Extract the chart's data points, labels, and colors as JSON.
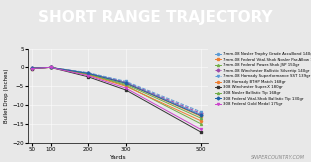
{
  "title": "SHORT RANGE TRAJECTORY",
  "xlabel": "Yards",
  "ylabel": "Bullet Drop (Inches)",
  "background_title": "#555555",
  "background_plot": "#e8e8e8",
  "title_color": "#ffffff",
  "accent_color": "#cc3333",
  "xlim": [
    40,
    520
  ],
  "ylim": [
    -20,
    5
  ],
  "xticks": [
    50,
    100,
    200,
    300,
    500
  ],
  "yticks": [
    5,
    0,
    -5,
    -10,
    -15,
    -20
  ],
  "yards": [
    50,
    100,
    200,
    300,
    500
  ],
  "series": [
    {
      "label": "7mm-08 Nosler Trophy Grade AccuBond 140gr",
      "color": "#5b9bd5",
      "style": "-",
      "marker": "o",
      "values": [
        -0.2,
        0.0,
        -1.5,
        -4.0,
        -12.5
      ]
    },
    {
      "label": "7mm-08 Federal Vital-Shok Nosler Par-Allow 140gr",
      "color": "#ed7d31",
      "style": "-",
      "marker": "s",
      "values": [
        -0.2,
        0.0,
        -1.6,
        -4.2,
        -13.0
      ]
    },
    {
      "label": "7mm-08 Federal Power-Shok JSP 150gr",
      "color": "#70ad47",
      "style": "-",
      "marker": "^",
      "values": [
        -0.2,
        0.0,
        -1.8,
        -4.8,
        -15.0
      ]
    },
    {
      "label": "7mm-08 Winchester Ballistic Silvertip 140gr",
      "color": "#9e48a8",
      "style": "--",
      "marker": "D",
      "values": [
        -0.2,
        0.0,
        -1.5,
        -3.9,
        -12.2
      ]
    },
    {
      "label": "7mm-08 Hornady Superformance SST 139gr",
      "color": "#5b9bd5",
      "style": "--",
      "marker": "v",
      "values": [
        -0.2,
        0.0,
        -1.4,
        -3.7,
        -11.8
      ]
    },
    {
      "label": "308 Hornady BTHP Match 168gr",
      "color": "#ed7d31",
      "style": "-",
      "marker": "o",
      "values": [
        -0.3,
        0.0,
        -2.0,
        -5.0,
        -14.2
      ]
    },
    {
      "label": "308 Winchester Super-X 180gr",
      "color": "#333333",
      "style": "-",
      "marker": "s",
      "values": [
        -0.3,
        0.0,
        -2.5,
        -6.0,
        -17.2
      ]
    },
    {
      "label": "308 Nosler Ballistic Tip 168gr",
      "color": "#70ad47",
      "style": "-",
      "marker": "^",
      "values": [
        -0.2,
        0.0,
        -1.8,
        -4.5,
        -13.5
      ]
    },
    {
      "label": "308 Federal Vital-Shok Ballistic Tip 130gr",
      "color": "#1f5fa6",
      "style": "-",
      "marker": "D",
      "values": [
        -0.2,
        0.0,
        -1.6,
        -4.2,
        -12.8
      ]
    },
    {
      "label": "308 Federal Gold Medal 175gr",
      "color": "#cc44cc",
      "style": "-",
      "marker": "v",
      "values": [
        -0.3,
        0.0,
        -2.2,
        -5.5,
        -16.5
      ]
    }
  ],
  "watermark": "SNIPERCOUNTRY.COM",
  "logo_color": "#cccccc"
}
